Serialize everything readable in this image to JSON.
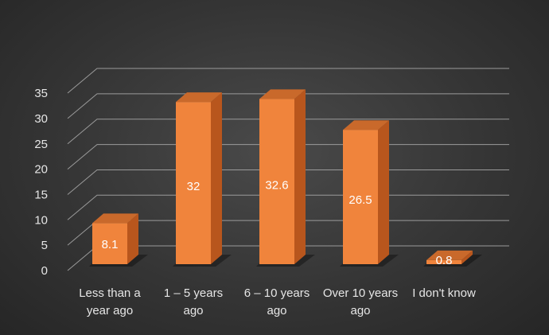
{
  "chart_data": {
    "type": "bar",
    "style": "3d-column",
    "categories": [
      [
        "Less than a",
        "year ago"
      ],
      [
        "1 – 5 years",
        "ago"
      ],
      [
        "6 – 10 years",
        "ago"
      ],
      [
        "Over 10 years",
        "ago"
      ],
      [
        "I don't know"
      ]
    ],
    "values": [
      8.1,
      32,
      32.6,
      26.5,
      0.8
    ],
    "value_labels": [
      "8.1",
      "32",
      "32.6",
      "26.5",
      "0.8"
    ],
    "y_ticks": [
      0,
      5,
      10,
      15,
      20,
      25,
      30,
      35
    ],
    "ylim": [
      0,
      35
    ],
    "grid": true,
    "legend": "none",
    "colors": {
      "bar_front": "#f0843c",
      "bar_side": "#b8561d",
      "bar_top": "#c9692b",
      "grid": "#9a9a9a",
      "text": "#e6e6e6",
      "background": "#353535"
    }
  }
}
